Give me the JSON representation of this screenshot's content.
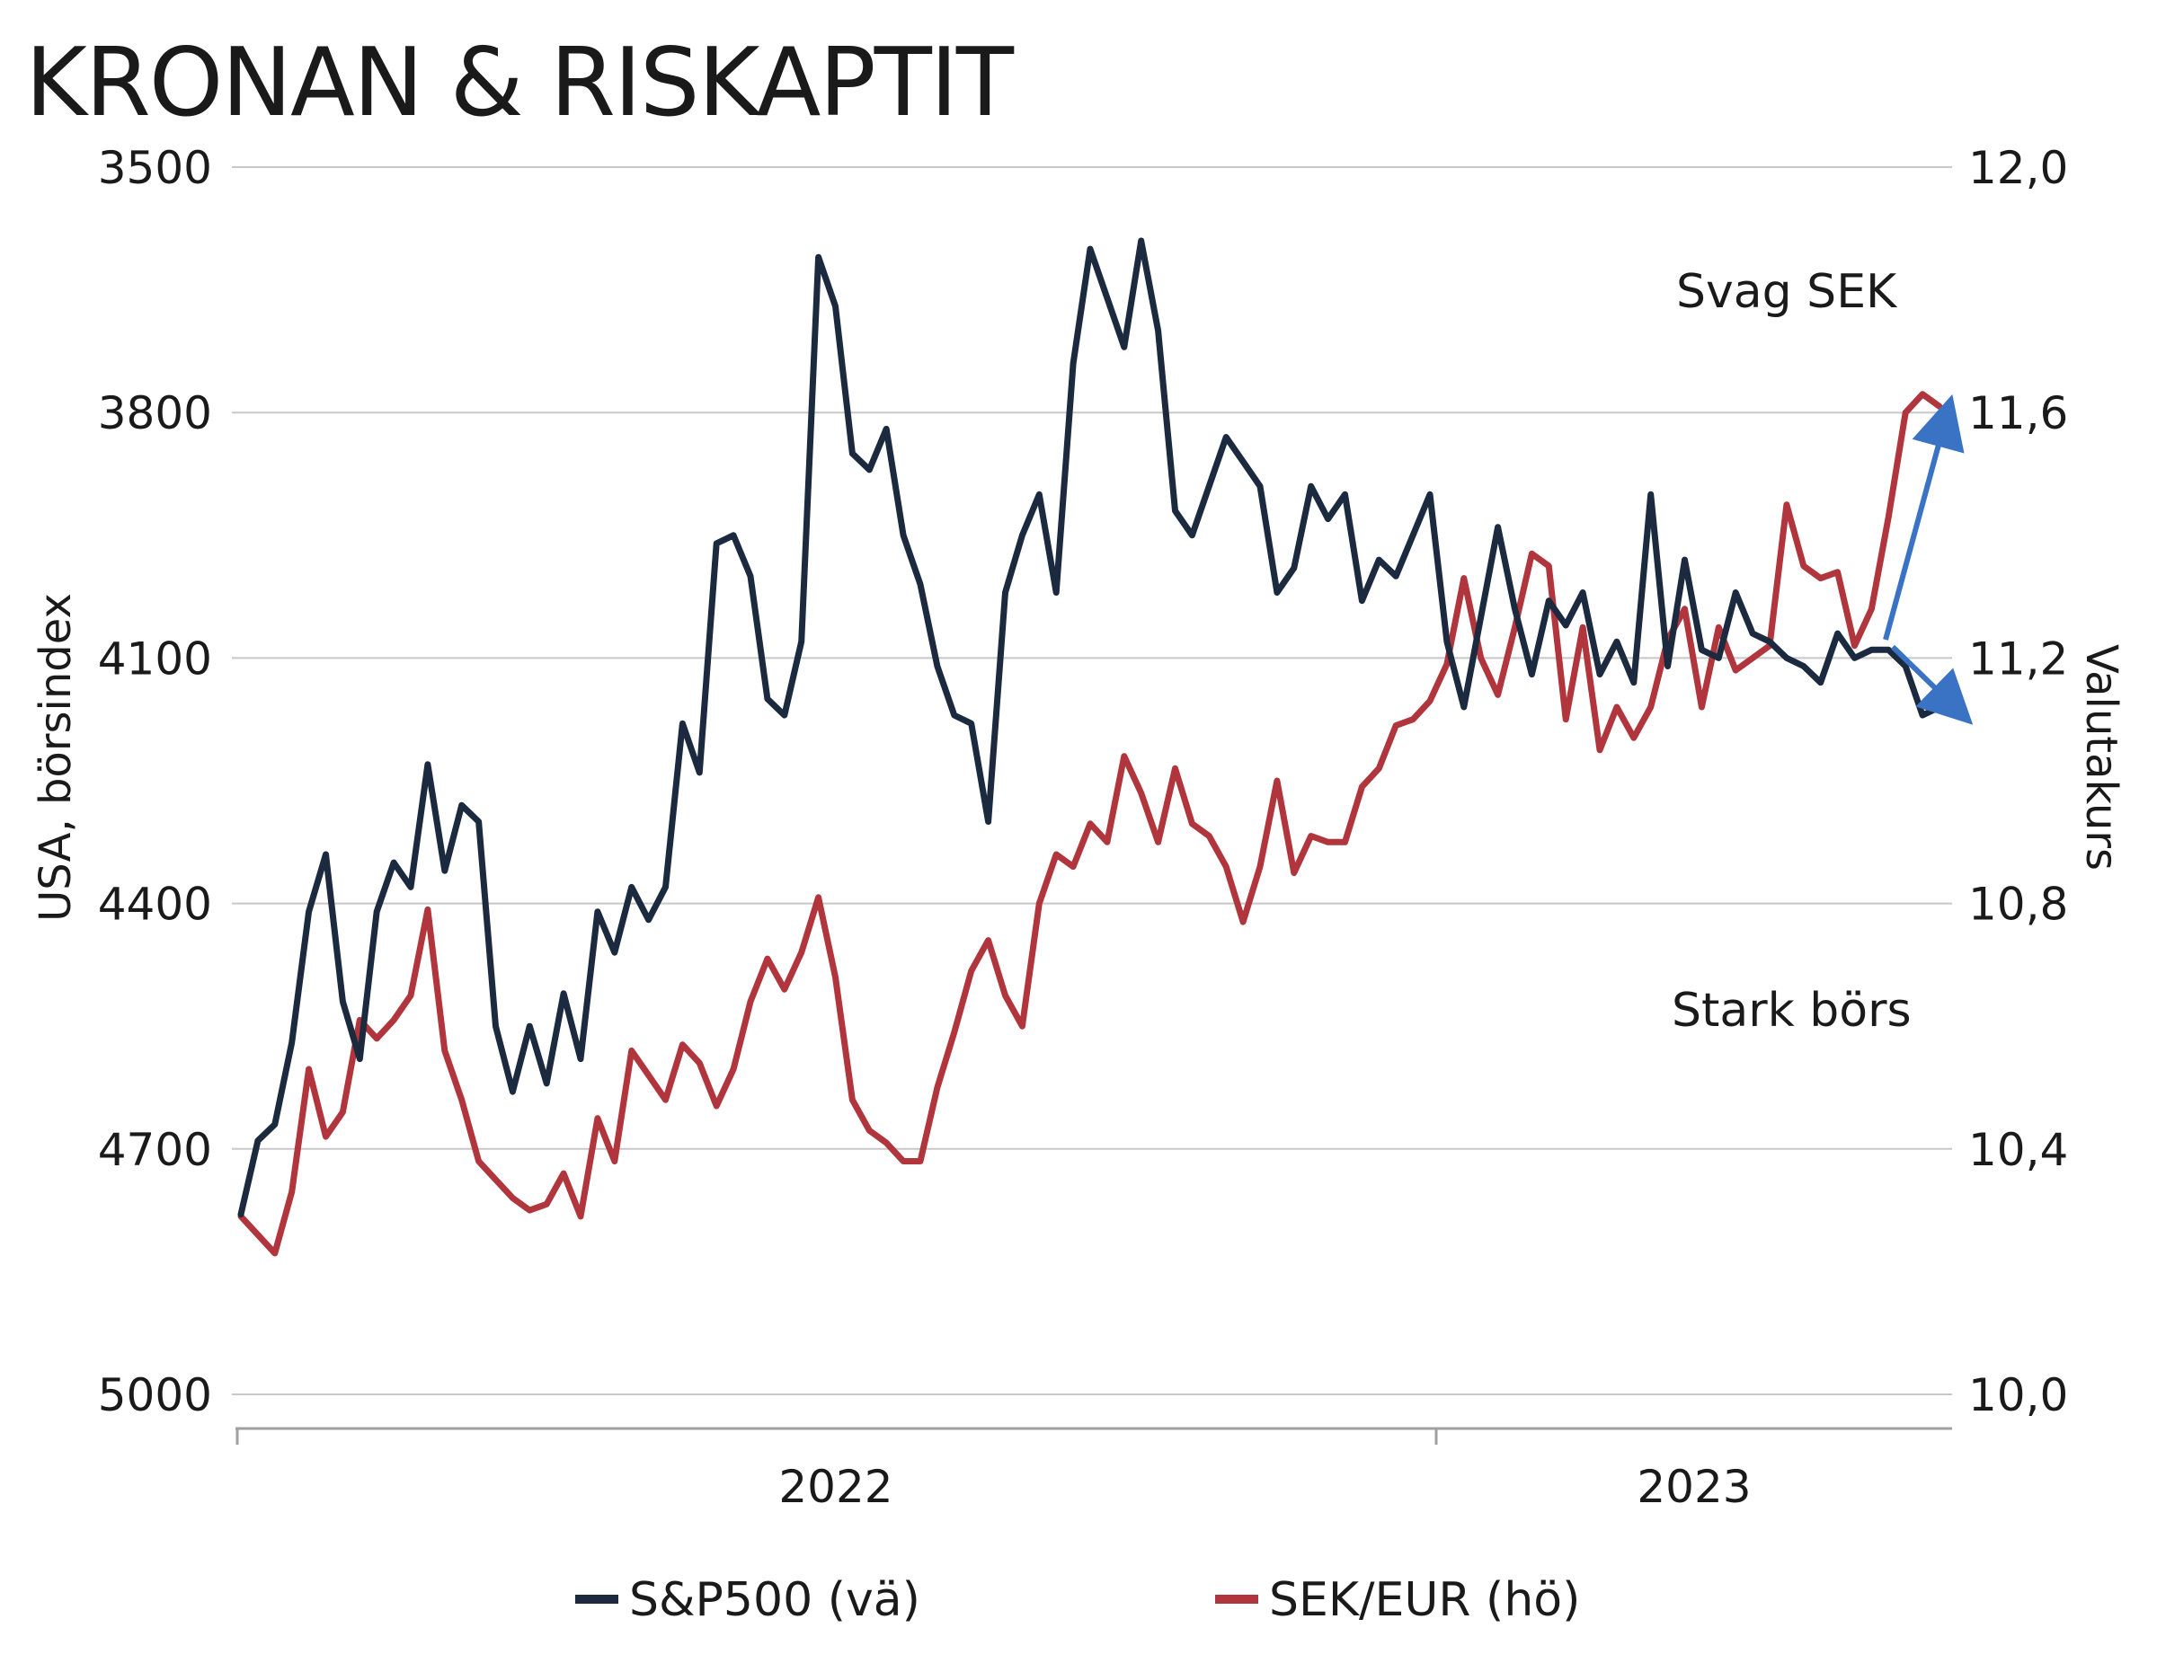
{
  "chart_data": {
    "type": "line",
    "title": "KRONAN & RISKAPTIT",
    "ylabel_left": "USA, börsindex",
    "ylabel_right": "Valutakurs",
    "left_axis": {
      "inverted": true,
      "ylim": [
        3500,
        5000
      ],
      "ticks": [
        "3500",
        "3800",
        "4100",
        "4400",
        "4700",
        "5000"
      ]
    },
    "right_axis": {
      "ylim": [
        10.0,
        12.0
      ],
      "ticks": [
        "12,0",
        "11,6",
        "11,2",
        "10,8",
        "10,4",
        "10,0"
      ]
    },
    "x_tick_labels": [
      "2022",
      "2023"
    ],
    "grid": true,
    "legend_position": "bottom",
    "series": [
      {
        "name": "S&P500 (vä)",
        "axis": "left",
        "color": "#1c2a3f",
        "t": [
          0.0,
          0.01,
          0.02,
          0.03,
          0.04,
          0.05,
          0.06,
          0.07,
          0.08,
          0.09,
          0.1,
          0.11,
          0.12,
          0.13,
          0.14,
          0.15,
          0.16,
          0.17,
          0.18,
          0.19,
          0.2,
          0.21,
          0.22,
          0.23,
          0.24,
          0.25,
          0.26,
          0.27,
          0.28,
          0.29,
          0.3,
          0.31,
          0.32,
          0.33,
          0.34,
          0.35,
          0.36,
          0.37,
          0.38,
          0.39,
          0.4,
          0.41,
          0.42,
          0.43,
          0.44,
          0.45,
          0.46,
          0.47,
          0.48,
          0.49,
          0.5,
          0.51,
          0.52,
          0.53,
          0.54,
          0.55,
          0.56,
          0.57,
          0.58,
          0.59,
          0.6,
          0.61,
          0.62,
          0.63,
          0.64,
          0.65,
          0.66,
          0.67,
          0.68,
          0.69,
          0.7,
          0.71,
          0.72,
          0.73,
          0.74,
          0.75,
          0.76,
          0.77,
          0.78,
          0.79,
          0.8,
          0.81,
          0.82,
          0.83,
          0.84,
          0.85,
          0.86,
          0.87,
          0.88,
          0.89,
          0.9,
          0.91,
          0.92,
          0.93,
          0.94,
          0.95,
          0.96,
          0.97,
          0.98,
          0.99,
          1.0
        ],
        "values": [
          4780,
          4690,
          4670,
          4570,
          4410,
          4340,
          4520,
          4590,
          4410,
          4350,
          4380,
          4230,
          4360,
          4280,
          4300,
          4550,
          4630,
          4550,
          4620,
          4510,
          4590,
          4410,
          4460,
          4380,
          4420,
          4380,
          4180,
          4240,
          3960,
          3950,
          4000,
          4150,
          4170,
          4080,
          3610,
          3670,
          3850,
          3870,
          3820,
          3950,
          4010,
          4110,
          4170,
          4180,
          4300,
          4020,
          3950,
          3900,
          4020,
          3740,
          3600,
          3660,
          3720,
          3590,
          3700,
          3920,
          3950,
          3890,
          3830,
          3860,
          3890,
          4020,
          3990,
          3890,
          3930,
          3900,
          4030,
          3980,
          4000,
          3950,
          3900,
          4080,
          4160,
          4050,
          3940,
          4040,
          4120,
          4030,
          4060,
          4020,
          4120,
          4080,
          4130,
          3900,
          4110,
          3980,
          4090,
          4100,
          4020,
          4070,
          4080,
          4100,
          4110,
          4130,
          4070,
          4100,
          4090,
          4090,
          4110,
          4170,
          4160
        ]
      },
      {
        "name": "SEK/EUR (hö)",
        "axis": "right",
        "color": "#b0353c",
        "t": [
          0.0,
          0.01,
          0.02,
          0.03,
          0.04,
          0.05,
          0.06,
          0.07,
          0.08,
          0.09,
          0.1,
          0.11,
          0.12,
          0.13,
          0.14,
          0.15,
          0.16,
          0.17,
          0.18,
          0.19,
          0.2,
          0.21,
          0.22,
          0.23,
          0.24,
          0.25,
          0.26,
          0.27,
          0.28,
          0.29,
          0.3,
          0.31,
          0.32,
          0.33,
          0.34,
          0.35,
          0.36,
          0.37,
          0.38,
          0.39,
          0.4,
          0.41,
          0.42,
          0.43,
          0.44,
          0.45,
          0.46,
          0.47,
          0.48,
          0.49,
          0.5,
          0.51,
          0.52,
          0.53,
          0.54,
          0.55,
          0.56,
          0.57,
          0.58,
          0.59,
          0.6,
          0.61,
          0.62,
          0.63,
          0.64,
          0.65,
          0.66,
          0.67,
          0.68,
          0.69,
          0.7,
          0.71,
          0.72,
          0.73,
          0.74,
          0.75,
          0.76,
          0.77,
          0.78,
          0.79,
          0.8,
          0.81,
          0.82,
          0.83,
          0.84,
          0.85,
          0.86,
          0.87,
          0.88,
          0.89,
          0.9,
          0.91,
          0.92,
          0.93,
          0.94,
          0.95,
          0.96,
          0.97,
          0.98,
          0.99,
          1.0
        ],
        "values": [
          10.29,
          10.26,
          10.23,
          10.33,
          10.53,
          10.42,
          10.46,
          10.61,
          10.58,
          10.61,
          10.65,
          10.79,
          10.56,
          10.48,
          10.38,
          10.35,
          10.32,
          10.3,
          10.31,
          10.36,
          10.29,
          10.45,
          10.38,
          10.56,
          10.52,
          10.48,
          10.57,
          10.54,
          10.47,
          10.53,
          10.64,
          10.71,
          10.66,
          10.72,
          10.81,
          10.68,
          10.48,
          10.43,
          10.41,
          10.38,
          10.38,
          10.5,
          10.59,
          10.69,
          10.74,
          10.65,
          10.6,
          10.8,
          10.88,
          10.86,
          10.93,
          10.9,
          11.04,
          10.98,
          10.9,
          11.02,
          10.93,
          10.91,
          10.86,
          10.77,
          10.86,
          11.0,
          10.85,
          10.91,
          10.9,
          10.9,
          10.99,
          11.02,
          11.09,
          11.1,
          11.13,
          11.19,
          11.33,
          11.2,
          11.14,
          11.25,
          11.37,
          11.35,
          11.1,
          11.25,
          11.05,
          11.12,
          11.07,
          11.12,
          11.23,
          11.28,
          11.12,
          11.25,
          11.18,
          11.2,
          11.22,
          11.45,
          11.35,
          11.33,
          11.34,
          11.22,
          11.28,
          11.43,
          11.6,
          11.63,
          11.61
        ]
      }
    ],
    "annotations": [
      {
        "text": "Svag SEK"
      },
      {
        "text": "Stark börs"
      }
    ],
    "arrow_color": "#3a73c4"
  }
}
